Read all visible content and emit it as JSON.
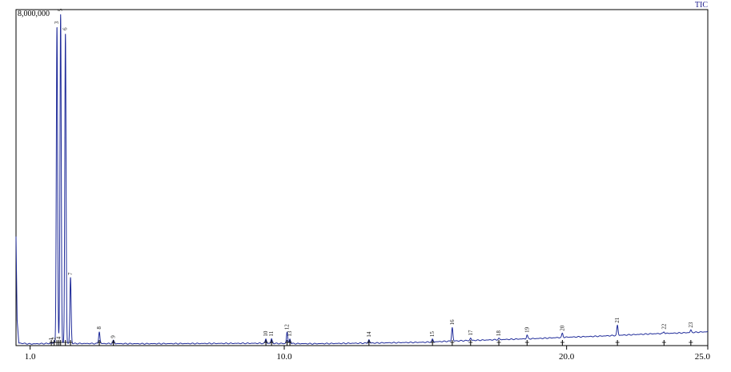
{
  "chart_data": {
    "type": "line",
    "trace_label": "TIC",
    "y_max_label": "8,000,000",
    "xlim": [
      0.5,
      25.0
    ],
    "ylim": [
      0,
      8000000
    ],
    "x_ticks": [
      {
        "value": 1.0,
        "label": "1.0"
      },
      {
        "value": 10.0,
        "label": "10.0"
      },
      {
        "value": 20.0,
        "label": "20.0"
      },
      {
        "value": 25.0,
        "label": "25.0"
      }
    ],
    "grid": false,
    "colors": {
      "trace": "#1e2a99",
      "axis": "#000000",
      "trace_label": "#1a1a8c"
    },
    "peaks": [
      {
        "label": "1",
        "x": 1.75,
        "y": 70000
      },
      {
        "label": "2",
        "x": 1.85,
        "y": 80000
      },
      {
        "label": "3",
        "x": 1.95,
        "y": 7600000
      },
      {
        "label": "4",
        "x": 2.02,
        "y": 90000
      },
      {
        "label": "5",
        "x": 2.08,
        "y": 7900000
      },
      {
        "label": "6",
        "x": 2.25,
        "y": 7450000
      },
      {
        "label": "7",
        "x": 2.43,
        "y": 1620000
      },
      {
        "label": "8",
        "x": 3.45,
        "y": 330000
      },
      {
        "label": "9",
        "x": 3.95,
        "y": 120000
      },
      {
        "label": "10",
        "x": 9.35,
        "y": 160000
      },
      {
        "label": "11",
        "x": 9.55,
        "y": 160000
      },
      {
        "label": "12",
        "x": 10.1,
        "y": 320000
      },
      {
        "label": "13",
        "x": 10.2,
        "y": 160000
      },
      {
        "label": "14",
        "x": 13.0,
        "y": 140000
      },
      {
        "label": "15",
        "x": 15.25,
        "y": 150000
      },
      {
        "label": "16",
        "x": 15.95,
        "y": 430000
      },
      {
        "label": "17",
        "x": 16.6,
        "y": 180000
      },
      {
        "label": "18",
        "x": 17.6,
        "y": 170000
      },
      {
        "label": "19",
        "x": 18.6,
        "y": 250000
      },
      {
        "label": "20",
        "x": 19.85,
        "y": 290000
      },
      {
        "label": "21",
        "x": 21.8,
        "y": 480000
      },
      {
        "label": "22",
        "x": 23.45,
        "y": 330000
      },
      {
        "label": "23",
        "x": 24.4,
        "y": 370000
      }
    ],
    "baseline": [
      [
        0.5,
        2600000
      ],
      [
        0.54,
        600000
      ],
      [
        0.6,
        60000
      ],
      [
        1.0,
        40000
      ],
      [
        1.6,
        50000
      ],
      [
        3.0,
        50000
      ],
      [
        5.0,
        45000
      ],
      [
        7.0,
        50000
      ],
      [
        9.0,
        55000
      ],
      [
        11.0,
        45000
      ],
      [
        13.0,
        60000
      ],
      [
        15.0,
        80000
      ],
      [
        16.0,
        110000
      ],
      [
        17.0,
        130000
      ],
      [
        18.0,
        150000
      ],
      [
        19.0,
        170000
      ],
      [
        20.0,
        200000
      ],
      [
        21.0,
        220000
      ],
      [
        22.0,
        250000
      ],
      [
        23.0,
        280000
      ],
      [
        24.0,
        300000
      ],
      [
        25.0,
        330000
      ]
    ]
  }
}
